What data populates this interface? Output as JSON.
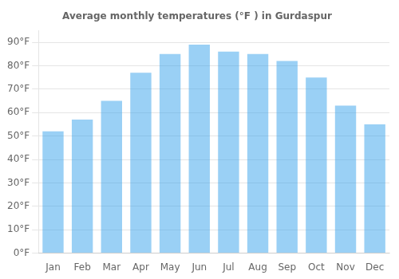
{
  "chart_data": {
    "type": "bar",
    "title": "Average monthly temperatures (°F ) in Gurdaspur",
    "categories": [
      "Jan",
      "Feb",
      "Mar",
      "Apr",
      "May",
      "Jun",
      "Jul",
      "Aug",
      "Sep",
      "Oct",
      "Nov",
      "Dec"
    ],
    "values": [
      52,
      57,
      65,
      77,
      85,
      89,
      86,
      85,
      82,
      75,
      63,
      55
    ],
    "ylim": [
      0,
      95
    ],
    "yticks": [
      {
        "value": 0,
        "label": "0°F"
      },
      {
        "value": 10,
        "label": "10°F"
      },
      {
        "value": 20,
        "label": "20°F"
      },
      {
        "value": 30,
        "label": "30°F"
      },
      {
        "value": 40,
        "label": "40°F"
      },
      {
        "value": 50,
        "label": "50°F"
      },
      {
        "value": 60,
        "label": "60°F"
      },
      {
        "value": 70,
        "label": "70°F"
      },
      {
        "value": 80,
        "label": "80°F"
      },
      {
        "value": 90,
        "label": "90°F"
      }
    ],
    "grid": true
  }
}
